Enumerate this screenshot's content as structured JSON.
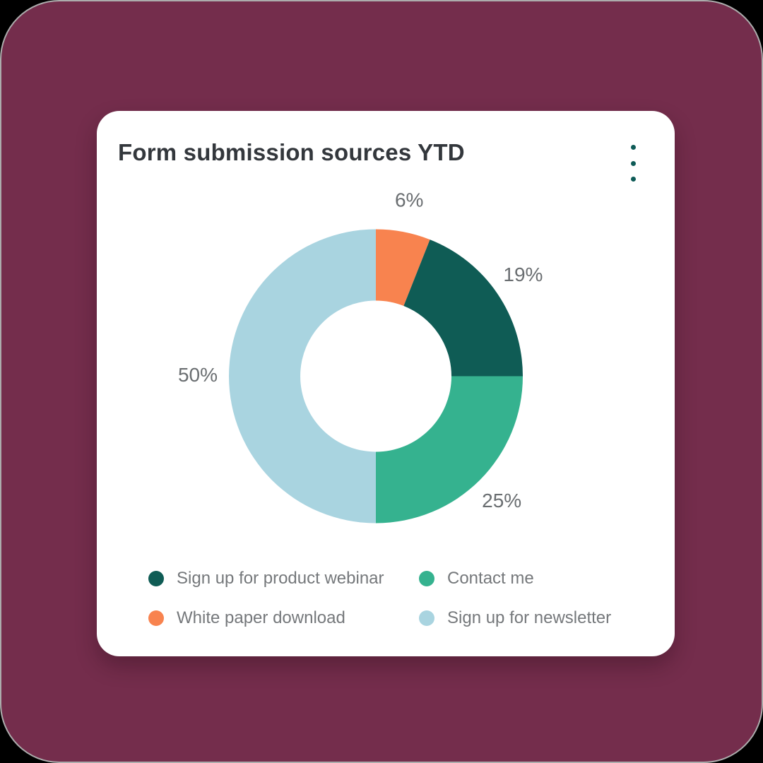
{
  "page": {
    "background_color": "#742D4C",
    "border_color": "#ACACAC"
  },
  "card": {
    "title": "Form submission sources YTD",
    "title_color": "#33373C",
    "menu_color": "#0E5B57"
  },
  "chart_data": {
    "type": "pie",
    "subtype": "donut",
    "title": "Form submission sources YTD",
    "start_angle_deg": 0,
    "direction": "clockwise",
    "data_labels_shown": true,
    "slices": [
      {
        "label": "White paper download",
        "value": 6,
        "unit": "%",
        "data_label": "6%",
        "color": "#F8834F"
      },
      {
        "label": "Sign up for product webinar",
        "value": 19,
        "unit": "%",
        "data_label": "19%",
        "color": "#0F5C55"
      },
      {
        "label": "Contact me",
        "value": 25,
        "unit": "%",
        "data_label": "25%",
        "color": "#35B28F"
      },
      {
        "label": "Sign up for newsletter",
        "value": 50,
        "unit": "%",
        "data_label": "50%",
        "color": "#A9D4E0"
      }
    ],
    "legend": {
      "position": "bottom",
      "columns": 2,
      "items": [
        {
          "label": "Sign up for product webinar",
          "color": "#0F5C55"
        },
        {
          "label": "Contact me",
          "color": "#35B28F"
        },
        {
          "label": "White paper download",
          "color": "#F8834F"
        },
        {
          "label": "Sign up for newsletter",
          "color": "#A9D4E0"
        }
      ]
    }
  }
}
